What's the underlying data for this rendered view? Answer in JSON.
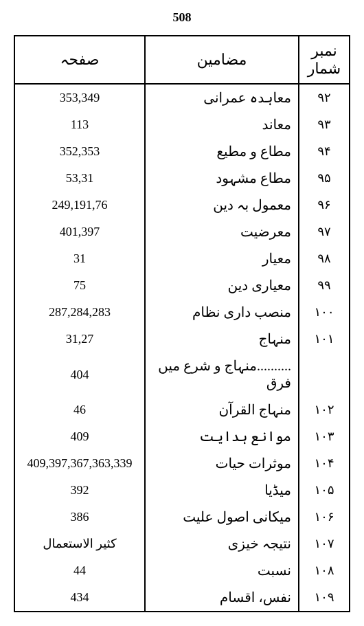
{
  "page_number": "508",
  "headers": {
    "number": "نمبر شمار",
    "subject": "مضامین",
    "page": "صفحہ"
  },
  "rows": [
    {
      "num": "۹۲",
      "subject": "معاہدہ عمرانی",
      "page": "353,349",
      "page_urdu": false
    },
    {
      "num": "۹۳",
      "subject": "معاند",
      "page": "113",
      "page_urdu": false
    },
    {
      "num": "۹۴",
      "subject": "مطاع و مطیع",
      "page": "352,353",
      "page_urdu": false
    },
    {
      "num": "۹۵",
      "subject": "مطاع مشہود",
      "page": "53,31",
      "page_urdu": false
    },
    {
      "num": "۹۶",
      "subject": "معمول بہ دین",
      "page": "249,191,76",
      "page_urdu": false
    },
    {
      "num": "۹۷",
      "subject": "معرضیت",
      "page": "401,397",
      "page_urdu": false
    },
    {
      "num": "۹۸",
      "subject": "معیار",
      "page": "31",
      "page_urdu": false
    },
    {
      "num": "۹۹",
      "subject": "معیاری دین",
      "page": "75",
      "page_urdu": false
    },
    {
      "num": "۱۰۰",
      "subject": "منصب داری نظام",
      "page": "287,284,283",
      "page_urdu": false
    },
    {
      "num": "۱۰۱",
      "subject": "منہاج",
      "page": "31,27",
      "page_urdu": false
    },
    {
      "num": "",
      "subject": "..........منہاج و شرع میں فرق",
      "page": "404",
      "page_urdu": false
    },
    {
      "num": "۱۰۲",
      "subject": "منہاج القرآن",
      "page": "46",
      "page_urdu": false
    },
    {
      "num": "۱۰۳",
      "subject": "موانع ہدایت",
      "page": "409",
      "page_urdu": false
    },
    {
      "num": "۱۰۴",
      "subject": "موثرات حیات",
      "page": "409,397,367,363,339",
      "page_urdu": false
    },
    {
      "num": "۱۰۵",
      "subject": "میڈیا",
      "page": "392",
      "page_urdu": false
    },
    {
      "num": "۱۰۶",
      "subject": "میکانی اصول علیت",
      "page": "386",
      "page_urdu": false
    },
    {
      "num": "۱۰۷",
      "subject": "نتیجہ خیزی",
      "page": "کثیر الاستعمال",
      "page_urdu": true
    },
    {
      "num": "۱۰۸",
      "subject": "نسبت",
      "page": "44",
      "page_urdu": false
    },
    {
      "num": "۱۰۹",
      "subject": "نفس، اقسام",
      "page": "434",
      "page_urdu": false
    }
  ]
}
